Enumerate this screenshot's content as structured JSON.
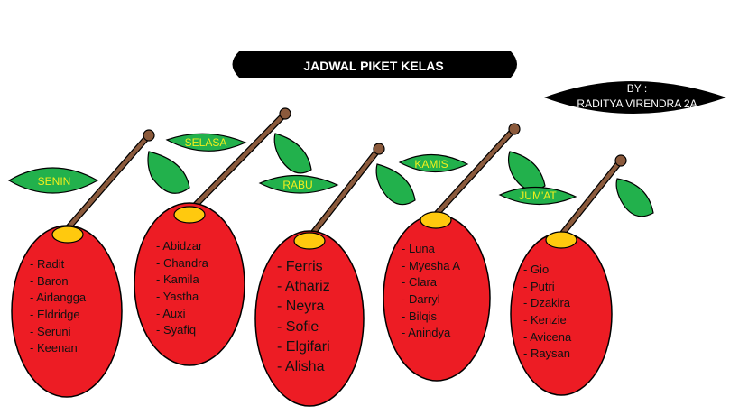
{
  "title": "JADWAL PIKET KELAS",
  "author": {
    "line1": "BY :",
    "line2": "RADITYA VIRENDRA 2A"
  },
  "days": [
    {
      "day": "SENIN",
      "members": [
        "Radit",
        "Baron",
        "Airlangga",
        "Eldridge",
        "Seruni",
        "Keenan"
      ]
    },
    {
      "day": "SELASA",
      "members": [
        "Abidzar",
        "Chandra",
        "Kamila",
        "Yastha",
        "Auxi",
        "Syafiq"
      ]
    },
    {
      "day": "RABU",
      "members": [
        "Ferris",
        "Athariz",
        "Neyra",
        "Sofie",
        "Elgifari",
        "Alisha"
      ]
    },
    {
      "day": "KAMIS",
      "members": [
        "Luna",
        "Myesha A",
        "Clara",
        "Darryl",
        "Bilqis",
        "Anindya"
      ]
    },
    {
      "day": "JUM'AT",
      "members": [
        "Gio",
        "Putri",
        "Dzakira",
        "Kenzie",
        "Avicena",
        "Raysan"
      ]
    }
  ],
  "colors": {
    "fruit": "#ed1c24",
    "stem": "#8b5a3c",
    "leaf": "#22b14c",
    "calyx": "#ffc90e",
    "label_text": "#f2ef1c",
    "banner": "#000000"
  }
}
